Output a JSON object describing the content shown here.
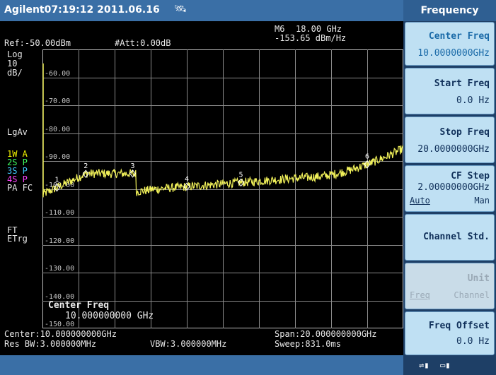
{
  "title_bar": {
    "text": "Agilent07:19:12  2011.06.16"
  },
  "header": {
    "ref": "Ref:-50.00dBm",
    "att": "#Att:0.00dB",
    "marker_id": "M6",
    "marker_freq": "18.00 GHz",
    "marker_value": "-153.65 dBm/Hz"
  },
  "sidebar": {
    "scale_type": "Log",
    "scale_value": "10",
    "scale_unit": "dB/",
    "avg_type": "LgAv",
    "traces": [
      {
        "label": "1W  A",
        "color": "#f2f200"
      },
      {
        "label": "2S  P",
        "color": "#40ff60"
      },
      {
        "label": "3S  P",
        "color": "#40c8ff"
      },
      {
        "label": "4S  P",
        "color": "#ff40ff"
      }
    ],
    "pa_fc": "PA FC",
    "ft": "FT",
    "etrg": "ETrg"
  },
  "graticule": {
    "y_labels": [
      "-60.00",
      "-70.00",
      "-80.00",
      "-90.00",
      "-100.00",
      "-110.00",
      "-120.00",
      "-130.00",
      "-140.00",
      "-150.00"
    ]
  },
  "active_param": {
    "label": "Center Freq",
    "value": "10.000000000 GHz"
  },
  "footer": {
    "center": "Center:10.000000000GHz",
    "span": "Span:20.000000000GHz",
    "res_bw": "Res BW:3.000000MHz",
    "vbw": "VBW:3.000000MHz",
    "sweep": "Sweep:831.0ms"
  },
  "trace_color": "#f2f25a",
  "markers": [
    {
      "label": "1",
      "freq_ghz": 0.8
    },
    {
      "label": "2",
      "freq_ghz": 2.4
    },
    {
      "label": "3",
      "freq_ghz": 5.0
    },
    {
      "label": "4",
      "freq_ghz": 8.0
    },
    {
      "label": "5",
      "freq_ghz": 11.0
    },
    {
      "label": "6",
      "freq_ghz": 18.0
    }
  ],
  "softkeys": {
    "menu_title": "Frequency",
    "center_freq": {
      "label": "Center Freq",
      "value": "10.0000000GHz"
    },
    "start_freq": {
      "label": "Start Freq",
      "value": "0.0 Hz"
    },
    "stop_freq": {
      "label": "Stop Freq",
      "value": "20.0000000GHz"
    },
    "cf_step": {
      "label": "CF Step",
      "value": "2.00000000GHz",
      "mode_auto": "Auto",
      "mode_man": "Man"
    },
    "channel_std": {
      "label": "Channel Std."
    },
    "unit": {
      "label": "Unit",
      "option_freq": "Freq",
      "option_channel": "Channel"
    },
    "freq_offset": {
      "label": "Freq Offset",
      "value": "0.0 Hz"
    }
  },
  "status_icons": [
    "usb-icon",
    "battery-icon"
  ]
}
